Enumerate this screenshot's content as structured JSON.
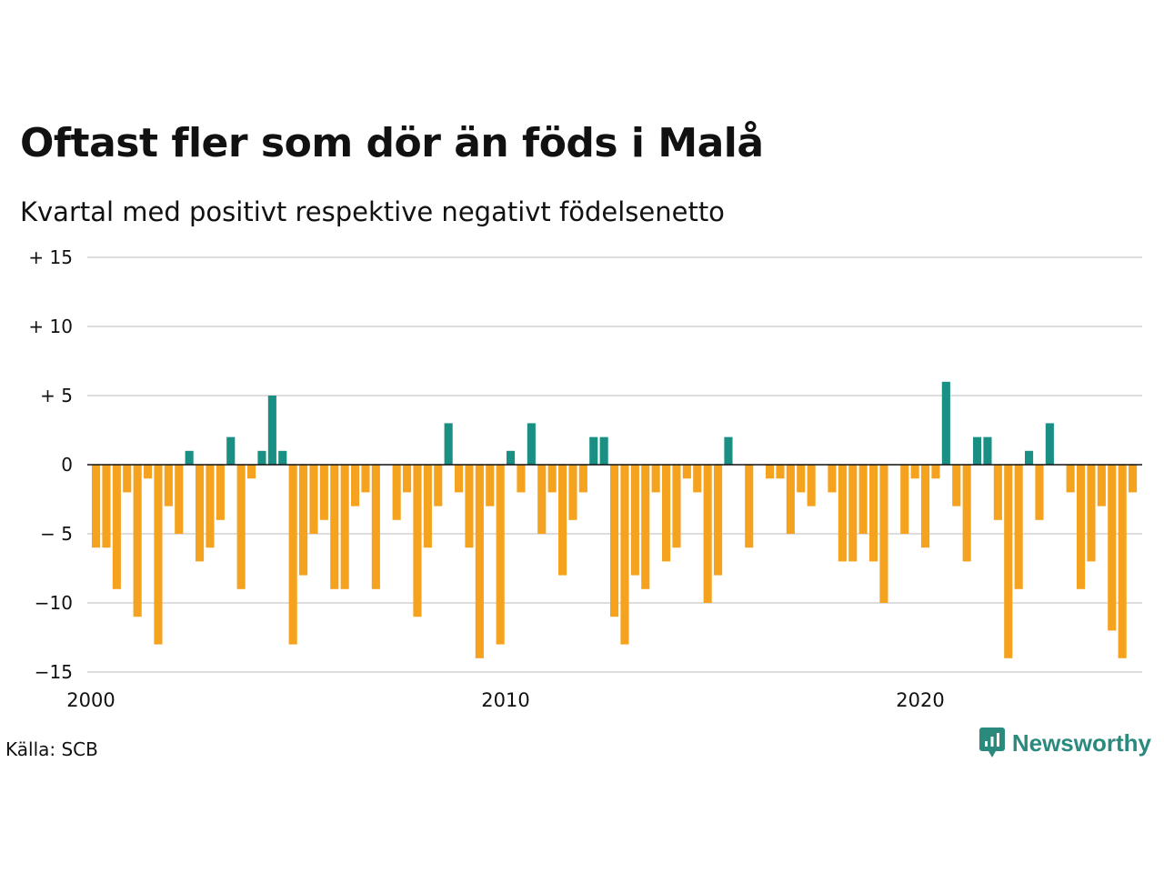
{
  "title": "Oftast fler som dör än föds i Malå",
  "subtitle": "Kvartal med positivt respektive negativt födelsenetto",
  "source": "Källa: SCB",
  "brand": "Newsworthy",
  "colors": {
    "positive": "#1a8f84",
    "negative": "#f5a21f",
    "grid": "#dddddd",
    "zero": "#111111",
    "brand": "#2a8a7e"
  },
  "chart_data": {
    "type": "bar",
    "x_start": 2000.0,
    "x_step": 0.25,
    "values": [
      -6,
      -6,
      -9,
      -2,
      -11,
      -1,
      -13,
      -3,
      -5,
      1,
      -7,
      -6,
      -4,
      2,
      -9,
      -1,
      1,
      5,
      1,
      -13,
      -8,
      -5,
      -4,
      -9,
      -9,
      -3,
      -2,
      -9,
      0,
      -4,
      -2,
      -11,
      -6,
      -3,
      3,
      -2,
      -6,
      -14,
      -3,
      -13,
      1,
      -2,
      3,
      -5,
      -2,
      -8,
      -4,
      -2,
      2,
      2,
      -11,
      -13,
      -8,
      -9,
      -2,
      -7,
      -6,
      -1,
      -2,
      -10,
      -8,
      2,
      0,
      -6,
      0,
      -1,
      -1,
      -5,
      -2,
      -3,
      0,
      -2,
      -7,
      -7,
      -5,
      -7,
      -10,
      0,
      -5,
      -1,
      -6,
      -1,
      6,
      -3,
      -7,
      2,
      2,
      -4,
      -14,
      -9,
      1,
      -4,
      3,
      0,
      -2,
      -9,
      -7,
      -3,
      -12,
      -14,
      -2
    ],
    "yticks": [
      15,
      10,
      5,
      0,
      -5,
      -10,
      -15
    ],
    "ytick_labels": [
      "+ 15",
      "+ 10",
      "+  5",
      "0",
      "− 5",
      "−10",
      "−15"
    ],
    "xticks": [
      2000,
      2010,
      2020
    ],
    "xtick_labels": [
      "2000",
      "2010",
      "2020"
    ],
    "ylim": [
      -15,
      15
    ],
    "xlim": [
      2000.0,
      2025.5
    ],
    "grid": true,
    "xlabel": "",
    "ylabel": ""
  }
}
